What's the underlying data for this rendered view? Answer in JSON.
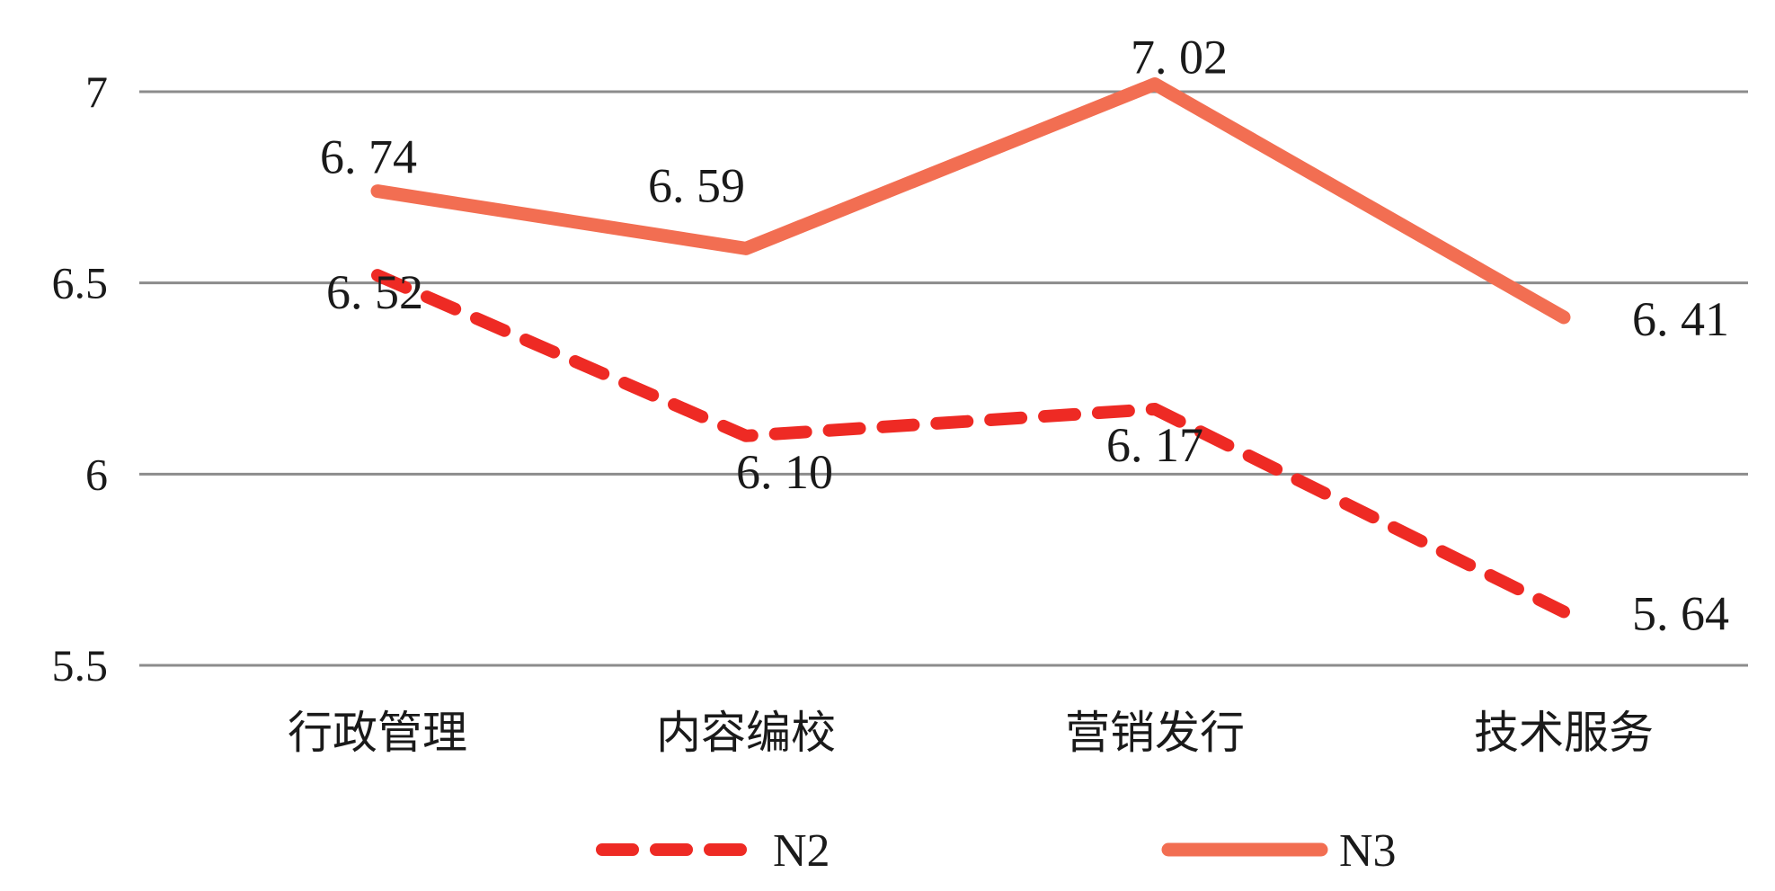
{
  "chart_data": {
    "type": "line",
    "title": "",
    "xlabel": "",
    "ylabel": "",
    "categories": [
      "行政管理",
      "内容编校",
      "营销发行",
      "技术服务"
    ],
    "ylim": [
      5.5,
      7
    ],
    "yticks": [
      5.5,
      6,
      6.5,
      7
    ],
    "ytick_labels": [
      "5.5",
      "6",
      "6.5",
      "7"
    ],
    "grid": true,
    "legend": "bottom",
    "series": [
      {
        "name": "N2",
        "style": "dashed",
        "color": "#ee2a24",
        "values": [
          6.52,
          6.1,
          6.17,
          5.64
        ],
        "labels": [
          "6. 52",
          "6. 10",
          "6. 17",
          "5. 64"
        ]
      },
      {
        "name": "N3",
        "style": "solid",
        "color": "#f26e52",
        "values": [
          6.74,
          6.59,
          7.02,
          6.41
        ],
        "labels": [
          "6. 74",
          "6. 59",
          "7. 02",
          "6. 41"
        ]
      }
    ]
  }
}
